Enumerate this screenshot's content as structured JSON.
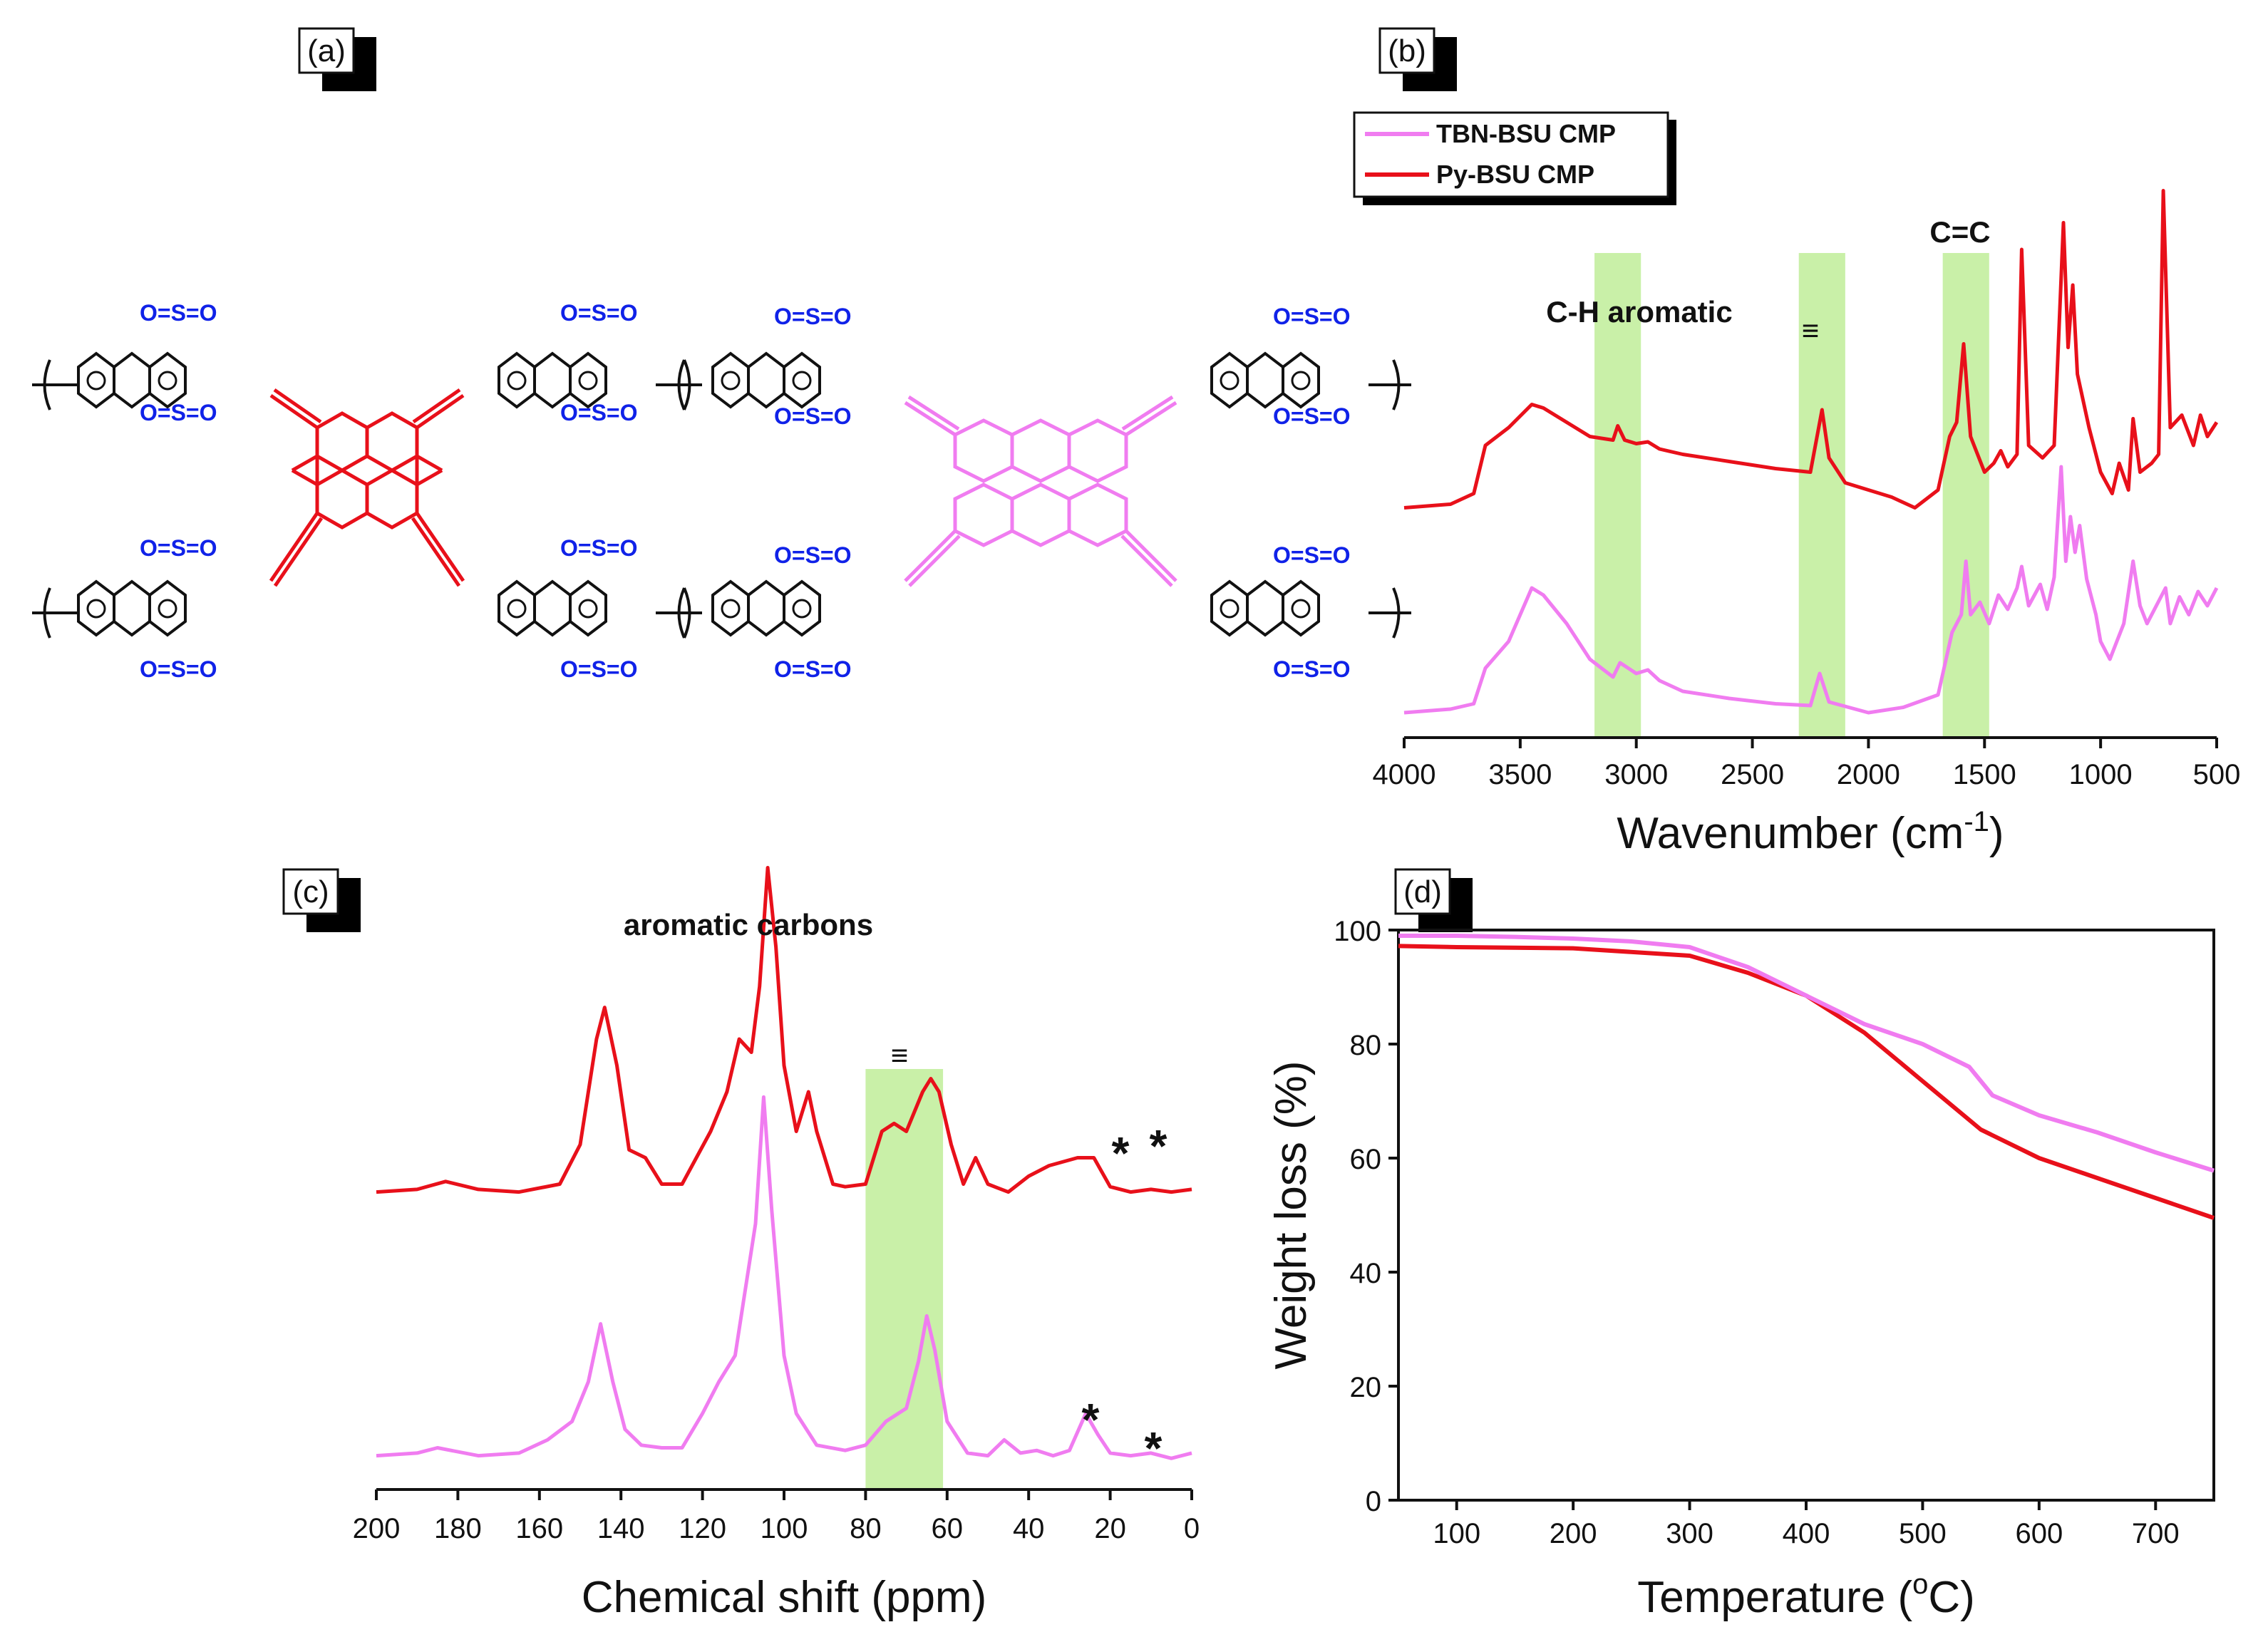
{
  "panels": {
    "a": "(a)",
    "b": "(b)",
    "c": "(c)",
    "d": "(d)"
  },
  "colors": {
    "py": "#e8101a",
    "tbn": "#f07cf0",
    "band": "#c9f0a8",
    "sulfone": "#1022e8",
    "backbone": "#111111"
  },
  "structure": {
    "sulfone_label": "O=S=O",
    "atoms": {
      "S": "S",
      "O": "O"
    }
  },
  "chart_data": [
    {
      "id": "b",
      "type": "line",
      "title": "",
      "xlabel": "Wavenumber (cm⁻¹)",
      "xlabel_main": "Wavenumber (cm",
      "xlabel_sup": "-1",
      "xlabel_end": ")",
      "ylabel": "",
      "xlim": [
        4000,
        500
      ],
      "x_reversed": true,
      "x_ticks": [
        "4000",
        "3500",
        "3000",
        "2500",
        "2000",
        "1500",
        "1000",
        "500"
      ],
      "legend": [
        "TBN-BSU CMP",
        "Py-BSU CMP"
      ],
      "legend_position": "top-left",
      "annotations": [
        "C-H aromatic",
        "≡",
        "C=C"
      ],
      "bands": [
        [
          3180,
          2980
        ],
        [
          2300,
          2100
        ],
        [
          1680,
          1480
        ]
      ],
      "series": [
        {
          "name": "Py-BSU CMP",
          "color": "#e8101a",
          "offset": 1.15,
          "points": [
            [
              4000,
              0.0
            ],
            [
              3800,
              0.02
            ],
            [
              3700,
              0.08
            ],
            [
              3650,
              0.35
            ],
            [
              3550,
              0.45
            ],
            [
              3450,
              0.58
            ],
            [
              3400,
              0.56
            ],
            [
              3300,
              0.48
            ],
            [
              3200,
              0.4
            ],
            [
              3100,
              0.38
            ],
            [
              3080,
              0.46
            ],
            [
              3050,
              0.38
            ],
            [
              3000,
              0.36
            ],
            [
              2950,
              0.37
            ],
            [
              2900,
              0.33
            ],
            [
              2800,
              0.3
            ],
            [
              2600,
              0.26
            ],
            [
              2400,
              0.22
            ],
            [
              2250,
              0.2
            ],
            [
              2200,
              0.55
            ],
            [
              2170,
              0.28
            ],
            [
              2100,
              0.14
            ],
            [
              2000,
              0.1
            ],
            [
              1900,
              0.06
            ],
            [
              1800,
              0.0
            ],
            [
              1700,
              0.1
            ],
            [
              1650,
              0.4
            ],
            [
              1620,
              0.48
            ],
            [
              1590,
              0.92
            ],
            [
              1560,
              0.4
            ],
            [
              1500,
              0.2
            ],
            [
              1460,
              0.25
            ],
            [
              1430,
              0.32
            ],
            [
              1400,
              0.23
            ],
            [
              1360,
              0.3
            ],
            [
              1340,
              1.45
            ],
            [
              1310,
              0.35
            ],
            [
              1250,
              0.28
            ],
            [
              1200,
              0.35
            ],
            [
              1160,
              1.6
            ],
            [
              1140,
              0.9
            ],
            [
              1120,
              1.25
            ],
            [
              1100,
              0.75
            ],
            [
              1050,
              0.45
            ],
            [
              1000,
              0.2
            ],
            [
              950,
              0.08
            ],
            [
              920,
              0.25
            ],
            [
              880,
              0.1
            ],
            [
              860,
              0.5
            ],
            [
              830,
              0.2
            ],
            [
              780,
              0.25
            ],
            [
              750,
              0.3
            ],
            [
              730,
              1.78
            ],
            [
              700,
              0.45
            ],
            [
              650,
              0.52
            ],
            [
              600,
              0.35
            ],
            [
              570,
              0.52
            ],
            [
              540,
              0.4
            ],
            [
              500,
              0.48
            ]
          ]
        },
        {
          "name": "TBN-BSU CMP",
          "color": "#f07cf0",
          "offset": 0.0,
          "points": [
            [
              4000,
              0.0
            ],
            [
              3800,
              0.02
            ],
            [
              3700,
              0.05
            ],
            [
              3650,
              0.25
            ],
            [
              3550,
              0.4
            ],
            [
              3450,
              0.7
            ],
            [
              3400,
              0.66
            ],
            [
              3300,
              0.5
            ],
            [
              3200,
              0.3
            ],
            [
              3100,
              0.2
            ],
            [
              3070,
              0.28
            ],
            [
              3000,
              0.22
            ],
            [
              2950,
              0.24
            ],
            [
              2900,
              0.18
            ],
            [
              2800,
              0.12
            ],
            [
              2600,
              0.08
            ],
            [
              2400,
              0.05
            ],
            [
              2250,
              0.04
            ],
            [
              2210,
              0.22
            ],
            [
              2170,
              0.06
            ],
            [
              2000,
              0.0
            ],
            [
              1850,
              0.03
            ],
            [
              1700,
              0.1
            ],
            [
              1640,
              0.45
            ],
            [
              1600,
              0.55
            ],
            [
              1580,
              0.85
            ],
            [
              1560,
              0.55
            ],
            [
              1520,
              0.62
            ],
            [
              1480,
              0.5
            ],
            [
              1440,
              0.66
            ],
            [
              1400,
              0.58
            ],
            [
              1360,
              0.7
            ],
            [
              1340,
              0.82
            ],
            [
              1310,
              0.6
            ],
            [
              1260,
              0.72
            ],
            [
              1230,
              0.58
            ],
            [
              1200,
              0.76
            ],
            [
              1170,
              1.38
            ],
            [
              1150,
              0.85
            ],
            [
              1130,
              1.1
            ],
            [
              1110,
              0.9
            ],
            [
              1090,
              1.05
            ],
            [
              1060,
              0.75
            ],
            [
              1020,
              0.55
            ],
            [
              1000,
              0.4
            ],
            [
              960,
              0.3
            ],
            [
              930,
              0.4
            ],
            [
              900,
              0.5
            ],
            [
              860,
              0.85
            ],
            [
              830,
              0.6
            ],
            [
              800,
              0.5
            ],
            [
              760,
              0.6
            ],
            [
              720,
              0.7
            ],
            [
              700,
              0.5
            ],
            [
              660,
              0.65
            ],
            [
              620,
              0.55
            ],
            [
              580,
              0.68
            ],
            [
              540,
              0.6
            ],
            [
              500,
              0.7
            ]
          ]
        }
      ]
    },
    {
      "id": "c",
      "type": "line",
      "title": "",
      "xlabel": "Chemical shift (ppm)",
      "ylabel": "",
      "xlim": [
        200,
        0
      ],
      "x_reversed": true,
      "x_ticks": [
        "200",
        "180",
        "160",
        "140",
        "120",
        "100",
        "80",
        "60",
        "40",
        "20",
        "0"
      ],
      "annotations": [
        "aromatic carbons",
        "≡",
        "*",
        "*",
        "*",
        "*"
      ],
      "bands": [
        [
          80,
          61
        ]
      ],
      "series": [
        {
          "name": "Py-BSU CMP",
          "color": "#e8101a",
          "offset": 1.0,
          "points": [
            [
              200,
              0.02
            ],
            [
              190,
              0.03
            ],
            [
              183,
              0.06
            ],
            [
              175,
              0.03
            ],
            [
              165,
              0.02
            ],
            [
              155,
              0.05
            ],
            [
              150,
              0.2
            ],
            [
              146,
              0.6
            ],
            [
              144,
              0.72
            ],
            [
              141,
              0.5
            ],
            [
              138,
              0.18
            ],
            [
              134,
              0.15
            ],
            [
              130,
              0.05
            ],
            [
              125,
              0.05
            ],
            [
              118,
              0.25
            ],
            [
              114,
              0.4
            ],
            [
              111,
              0.6
            ],
            [
              108,
              0.55
            ],
            [
              106,
              0.8
            ],
            [
              104,
              1.25
            ],
            [
              102,
              0.95
            ],
            [
              100,
              0.5
            ],
            [
              97,
              0.25
            ],
            [
              94,
              0.4
            ],
            [
              92,
              0.25
            ],
            [
              88,
              0.05
            ],
            [
              85,
              0.04
            ],
            [
              80,
              0.05
            ],
            [
              76,
              0.25
            ],
            [
              73,
              0.28
            ],
            [
              70,
              0.25
            ],
            [
              66,
              0.4
            ],
            [
              64,
              0.45
            ],
            [
              62,
              0.4
            ],
            [
              59,
              0.2
            ],
            [
              56,
              0.05
            ],
            [
              53,
              0.15
            ],
            [
              50,
              0.05
            ],
            [
              45,
              0.02
            ],
            [
              40,
              0.08
            ],
            [
              35,
              0.12
            ],
            [
              28,
              0.15
            ],
            [
              24,
              0.15
            ],
            [
              20,
              0.04
            ],
            [
              15,
              0.02
            ],
            [
              10,
              0.03
            ],
            [
              5,
              0.02
            ],
            [
              0,
              0.03
            ]
          ]
        },
        {
          "name": "TBN-BSU CMP",
          "color": "#f07cf0",
          "offset": 0.0,
          "points": [
            [
              200,
              0.02
            ],
            [
              190,
              0.03
            ],
            [
              185,
              0.05
            ],
            [
              175,
              0.02
            ],
            [
              165,
              0.03
            ],
            [
              158,
              0.08
            ],
            [
              152,
              0.15
            ],
            [
              148,
              0.3
            ],
            [
              145,
              0.52
            ],
            [
              142,
              0.3
            ],
            [
              139,
              0.12
            ],
            [
              135,
              0.06
            ],
            [
              130,
              0.05
            ],
            [
              125,
              0.05
            ],
            [
              120,
              0.18
            ],
            [
              116,
              0.3
            ],
            [
              112,
              0.4
            ],
            [
              110,
              0.6
            ],
            [
              107,
              0.9
            ],
            [
              105,
              1.38
            ],
            [
              103,
              0.95
            ],
            [
              100,
              0.4
            ],
            [
              97,
              0.18
            ],
            [
              92,
              0.06
            ],
            [
              85,
              0.04
            ],
            [
              80,
              0.06
            ],
            [
              75,
              0.15
            ],
            [
              70,
              0.2
            ],
            [
              67,
              0.38
            ],
            [
              65,
              0.55
            ],
            [
              63,
              0.42
            ],
            [
              60,
              0.15
            ],
            [
              55,
              0.03
            ],
            [
              50,
              0.02
            ],
            [
              46,
              0.08
            ],
            [
              42,
              0.03
            ],
            [
              38,
              0.04
            ],
            [
              34,
              0.02
            ],
            [
              30,
              0.04
            ],
            [
              26,
              0.18
            ],
            [
              23,
              0.1
            ],
            [
              20,
              0.03
            ],
            [
              15,
              0.02
            ],
            [
              10,
              0.03
            ],
            [
              5,
              0.01
            ],
            [
              0,
              0.03
            ]
          ]
        }
      ]
    },
    {
      "id": "d",
      "type": "line",
      "title": "",
      "xlabel": "Temperature (°C)",
      "xlabel_main": "Temperature (",
      "xlabel_sup": "o",
      "xlabel_end": "C)",
      "ylabel": "Weight loss (%)",
      "xlim": [
        50,
        750
      ],
      "ylim": [
        0,
        100
      ],
      "x_ticks": [
        "100",
        "200",
        "300",
        "400",
        "500",
        "600",
        "700"
      ],
      "y_ticks": [
        "0",
        "20",
        "40",
        "60",
        "80",
        "100"
      ],
      "series": [
        {
          "name": "Py-BSU CMP",
          "color": "#e8101a",
          "points": [
            [
              50,
              97.2
            ],
            [
              100,
              97.0
            ],
            [
              200,
              96.8
            ],
            [
              300,
              95.5
            ],
            [
              350,
              92.5
            ],
            [
              400,
              88.5
            ],
            [
              450,
              82.0
            ],
            [
              500,
              73.5
            ],
            [
              550,
              65.0
            ],
            [
              600,
              60.0
            ],
            [
              650,
              56.5
            ],
            [
              700,
              53.0
            ],
            [
              750,
              49.5
            ]
          ]
        },
        {
          "name": "TBN-BSU CMP",
          "color": "#f07cf0",
          "points": [
            [
              50,
              99.0
            ],
            [
              100,
              99.0
            ],
            [
              150,
              98.8
            ],
            [
              200,
              98.5
            ],
            [
              250,
              98.0
            ],
            [
              300,
              97.0
            ],
            [
              350,
              93.5
            ],
            [
              400,
              88.5
            ],
            [
              450,
              83.5
            ],
            [
              500,
              80.0
            ],
            [
              540,
              76.0
            ],
            [
              560,
              71.0
            ],
            [
              600,
              67.5
            ],
            [
              650,
              64.5
            ],
            [
              700,
              61.0
            ],
            [
              750,
              57.8
            ]
          ]
        }
      ]
    }
  ]
}
